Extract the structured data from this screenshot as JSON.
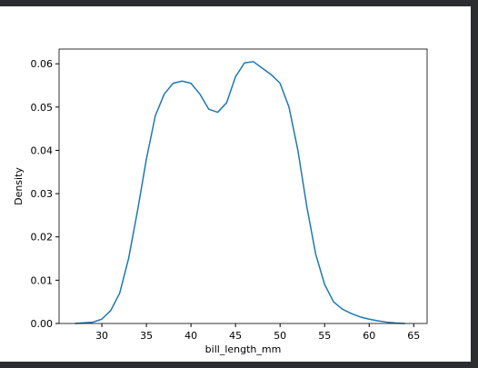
{
  "chart_data": {
    "type": "line",
    "xlabel": "bill_length_mm",
    "ylabel": "Density",
    "x": [
      27,
      29,
      30,
      31,
      32,
      33,
      34,
      35,
      36,
      37,
      38,
      39,
      40,
      41,
      42,
      43,
      44,
      45,
      46,
      47,
      48,
      49,
      50,
      51,
      52,
      53,
      54,
      55,
      56,
      57,
      58,
      59,
      60,
      61,
      62,
      63,
      64
    ],
    "series": [
      {
        "color": "#1f77b4",
        "values": [
          0.0,
          0.0003,
          0.001,
          0.003,
          0.007,
          0.015,
          0.026,
          0.038,
          0.048,
          0.053,
          0.0555,
          0.056,
          0.0555,
          0.053,
          0.0495,
          0.0488,
          0.051,
          0.057,
          0.0602,
          0.0605,
          0.059,
          0.0575,
          0.0555,
          0.05,
          0.04,
          0.027,
          0.016,
          0.009,
          0.005,
          0.0033,
          0.0023,
          0.0015,
          0.001,
          0.0006,
          0.0003,
          0.0001,
          0.0
        ]
      }
    ],
    "xlim": [
      25.2,
      66.5
    ],
    "ylim": [
      0,
      0.0634
    ],
    "xticks": [
      30,
      35,
      40,
      45,
      50,
      55,
      60,
      65
    ],
    "yticks": [
      {
        "value": 0,
        "label": "0.00"
      },
      {
        "value": 0.01,
        "label": "0.01"
      },
      {
        "value": 0.02,
        "label": "0.02"
      },
      {
        "value": 0.03,
        "label": "0.03"
      },
      {
        "value": 0.04,
        "label": "0.04"
      },
      {
        "value": 0.05,
        "label": "0.05"
      },
      {
        "value": 0.06,
        "label": "0.06"
      }
    ]
  }
}
